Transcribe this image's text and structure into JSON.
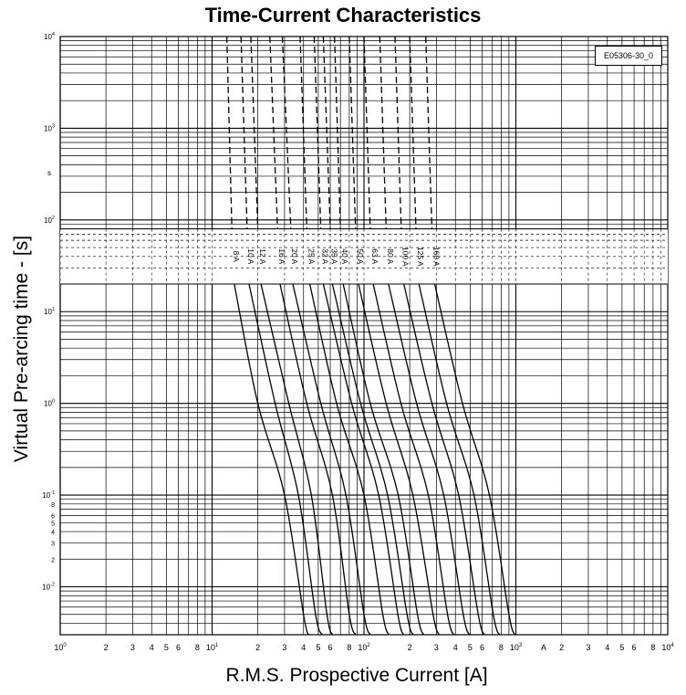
{
  "chart_data": {
    "type": "line",
    "title": "Time-Current Characteristics",
    "xlabel": "R.M.S. Prospective Current [A]",
    "ylabel": "Virtual Pre-arcing time - [s]",
    "x_scale": "log",
    "y_scale": "log",
    "xlim": [
      1,
      10000
    ],
    "ylim": [
      0.003,
      10000
    ],
    "grid": true,
    "reference_box": "E05306-30_0",
    "x_unit_marker": "A",
    "y_unit_marker": "s",
    "x_ticks": [
      {
        "label": "10",
        "sup": "0",
        "v": 1
      },
      {
        "label": "2",
        "v": 2
      },
      {
        "label": "3",
        "v": 3
      },
      {
        "label": "4",
        "v": 4
      },
      {
        "label": "5",
        "v": 5
      },
      {
        "label": "6",
        "v": 6
      },
      {
        "label": "8",
        "v": 8
      },
      {
        "label": "10",
        "sup": "1",
        "v": 10
      },
      {
        "label": "2",
        "v": 20
      },
      {
        "label": "3",
        "v": 30
      },
      {
        "label": "4",
        "v": 40
      },
      {
        "label": "5",
        "v": 50
      },
      {
        "label": "6",
        "v": 60
      },
      {
        "label": "8",
        "v": 80
      },
      {
        "label": "10",
        "sup": "2",
        "v": 100
      },
      {
        "label": "2",
        "v": 200
      },
      {
        "label": "3",
        "v": 300
      },
      {
        "label": "4",
        "v": 400
      },
      {
        "label": "5",
        "v": 500
      },
      {
        "label": "6",
        "v": 600
      },
      {
        "label": "8",
        "v": 800
      },
      {
        "label": "10",
        "sup": "3",
        "v": 1000
      },
      {
        "label": "2",
        "v": 2000
      },
      {
        "label": "3",
        "v": 3000
      },
      {
        "label": "4",
        "v": 4000
      },
      {
        "label": "5",
        "v": 5000
      },
      {
        "label": "6",
        "v": 6000
      },
      {
        "label": "8",
        "v": 8000
      },
      {
        "label": "10",
        "sup": "4",
        "v": 10000
      }
    ],
    "y_ticks": [
      {
        "label": "10",
        "sup": "4",
        "v": 10000
      },
      {
        "label": "10",
        "sup": "3",
        "v": 1000
      },
      {
        "label": "10",
        "sup": "2",
        "v": 100
      },
      {
        "label": "10",
        "sup": "1",
        "v": 10
      },
      {
        "label": "10",
        "sup": "0",
        "v": 1
      },
      {
        "label": "10",
        "sup": "-1",
        "v": 0.1
      },
      {
        "label": "8",
        "v": 0.08
      },
      {
        "label": "6",
        "v": 0.06
      },
      {
        "label": "5",
        "v": 0.05
      },
      {
        "label": "4",
        "v": 0.04
      },
      {
        "label": "3",
        "v": 0.03
      },
      {
        "label": "2",
        "v": 0.02
      },
      {
        "label": "10",
        "sup": "-2",
        "v": 0.01
      }
    ],
    "band_lower_s": 20,
    "band_upper_s": 80,
    "label_row_s": 40,
    "series": [
      {
        "name": "8 A",
        "upper": [
          [
            12.5,
            10000
          ],
          [
            13.5,
            80
          ]
        ],
        "lower": [
          [
            14,
            20
          ],
          [
            20,
            1
          ],
          [
            30,
            0.1
          ],
          [
            40,
            0.005
          ],
          [
            43,
            0.003
          ]
        ]
      },
      {
        "name": "10 A",
        "upper": [
          [
            15.5,
            10000
          ],
          [
            17,
            80
          ]
        ],
        "lower": [
          [
            17.5,
            20
          ],
          [
            26,
            1
          ],
          [
            37,
            0.1
          ],
          [
            48,
            0.005
          ],
          [
            53,
            0.003
          ]
        ]
      },
      {
        "name": "12 A",
        "upper": [
          [
            18,
            10000
          ],
          [
            20,
            80
          ]
        ],
        "lower": [
          [
            21,
            20
          ],
          [
            32,
            1
          ],
          [
            45,
            0.1
          ],
          [
            57,
            0.005
          ],
          [
            62,
            0.003
          ]
        ]
      },
      {
        "name": "16 A",
        "upper": [
          [
            24,
            10000
          ],
          [
            27,
            80
          ]
        ],
        "lower": [
          [
            28,
            20
          ],
          [
            42,
            1
          ],
          [
            62,
            0.1
          ],
          [
            80,
            0.005
          ],
          [
            88,
            0.003
          ]
        ]
      },
      {
        "name": "20 A",
        "upper": [
          [
            29,
            10000
          ],
          [
            33,
            80
          ]
        ],
        "lower": [
          [
            34,
            20
          ],
          [
            52,
            1
          ],
          [
            76,
            0.1
          ],
          [
            100,
            0.005
          ],
          [
            110,
            0.003
          ]
        ]
      },
      {
        "name": "25 A",
        "upper": [
          [
            38,
            10000
          ],
          [
            42,
            80
          ]
        ],
        "lower": [
          [
            44,
            20
          ],
          [
            66,
            1
          ],
          [
            100,
            0.1
          ],
          [
            133,
            0.005
          ],
          [
            146,
            0.003
          ]
        ]
      },
      {
        "name": "32 A",
        "upper": [
          [
            47,
            10000
          ],
          [
            52,
            80
          ]
        ],
        "lower": [
          [
            54,
            20
          ],
          [
            83,
            1
          ],
          [
            125,
            0.1
          ],
          [
            167,
            0.005
          ],
          [
            182,
            0.003
          ]
        ]
      },
      {
        "name": "35 A",
        "upper": [
          [
            54,
            10000
          ],
          [
            60,
            80
          ]
        ],
        "lower": [
          [
            62,
            20
          ],
          [
            95,
            1
          ],
          [
            143,
            0.1
          ],
          [
            192,
            0.005
          ],
          [
            210,
            0.003
          ]
        ]
      },
      {
        "name": "40 A",
        "upper": [
          [
            64,
            10000
          ],
          [
            70,
            80
          ]
        ],
        "lower": [
          [
            73,
            20
          ],
          [
            110,
            1
          ],
          [
            168,
            0.1
          ],
          [
            225,
            0.005
          ],
          [
            247,
            0.003
          ]
        ]
      },
      {
        "name": "50 A",
        "upper": [
          [
            80,
            10000
          ],
          [
            88,
            80
          ]
        ],
        "lower": [
          [
            92,
            20
          ],
          [
            140,
            1
          ],
          [
            210,
            0.1
          ],
          [
            285,
            0.005
          ],
          [
            312,
            0.003
          ]
        ]
      },
      {
        "name": "63 A",
        "upper": [
          [
            100,
            10000
          ],
          [
            110,
            80
          ]
        ],
        "lower": [
          [
            115,
            20
          ],
          [
            175,
            1
          ],
          [
            265,
            0.1
          ],
          [
            355,
            0.005
          ],
          [
            390,
            0.003
          ]
        ]
      },
      {
        "name": "80 A",
        "upper": [
          [
            127,
            10000
          ],
          [
            140,
            80
          ]
        ],
        "lower": [
          [
            145,
            20
          ],
          [
            222,
            1
          ],
          [
            335,
            0.1
          ],
          [
            450,
            0.005
          ],
          [
            495,
            0.003
          ]
        ]
      },
      {
        "name": "100 A",
        "upper": [
          [
            160,
            10000
          ],
          [
            176,
            80
          ]
        ],
        "lower": [
          [
            183,
            20
          ],
          [
            280,
            1
          ],
          [
            420,
            0.1
          ],
          [
            565,
            0.005
          ],
          [
            620,
            0.003
          ]
        ]
      },
      {
        "name": "125 A",
        "upper": [
          [
            200,
            10000
          ],
          [
            220,
            80
          ]
        ],
        "lower": [
          [
            230,
            20
          ],
          [
            350,
            1
          ],
          [
            530,
            0.1
          ],
          [
            710,
            0.005
          ],
          [
            780,
            0.003
          ]
        ]
      },
      {
        "name": "160 A",
        "upper": [
          [
            255,
            10000
          ],
          [
            280,
            80
          ]
        ],
        "lower": [
          [
            292,
            20
          ],
          [
            445,
            1
          ],
          [
            670,
            0.1
          ],
          [
            900,
            0.005
          ],
          [
            985,
            0.003
          ]
        ]
      }
    ]
  }
}
